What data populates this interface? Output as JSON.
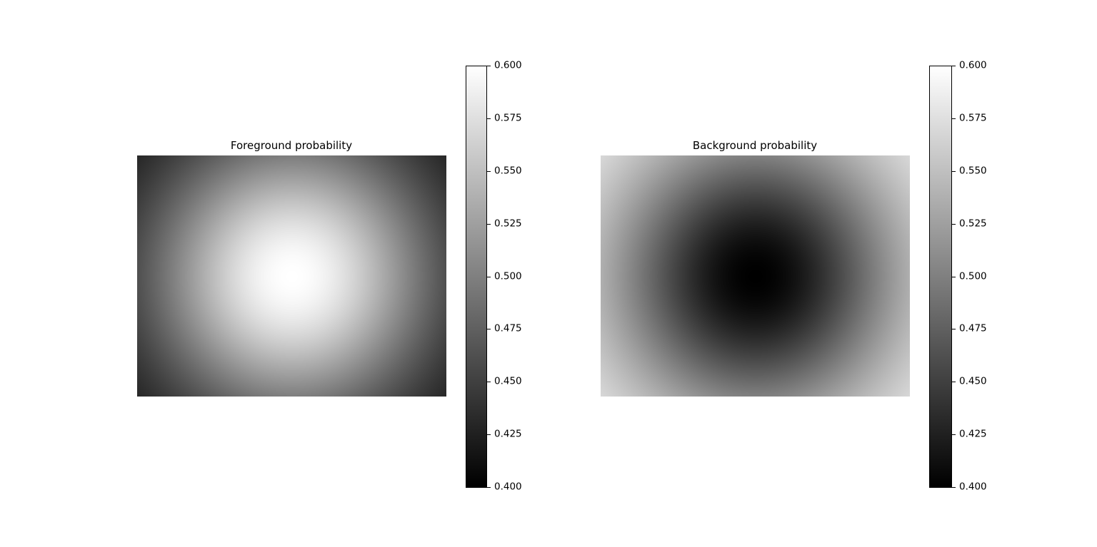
{
  "chart_data": [
    {
      "type": "heatmap",
      "title": "Foreground probability",
      "colormap": "gray",
      "pattern": "radial peak at center",
      "center_value": 0.6,
      "corner_value": 0.4,
      "colorbar": {
        "range": [
          0.4,
          0.6
        ],
        "ticks": [
          0.4,
          0.425,
          0.45,
          0.475,
          0.5,
          0.525,
          0.55,
          0.575,
          0.6
        ],
        "tick_labels": [
          "0.400",
          "0.425",
          "0.450",
          "0.475",
          "0.500",
          "0.525",
          "0.550",
          "0.575",
          "0.600"
        ]
      },
      "axes_visible": false
    },
    {
      "type": "heatmap",
      "title": "Background probability",
      "colormap": "gray",
      "pattern": "radial dip at center",
      "center_value": 0.4,
      "corner_value": 0.6,
      "colorbar": {
        "range": [
          0.4,
          0.6
        ],
        "ticks": [
          0.4,
          0.425,
          0.45,
          0.475,
          0.5,
          0.525,
          0.55,
          0.575,
          0.6
        ],
        "tick_labels": [
          "0.400",
          "0.425",
          "0.450",
          "0.475",
          "0.500",
          "0.525",
          "0.550",
          "0.575",
          "0.600"
        ]
      },
      "axes_visible": false
    }
  ]
}
